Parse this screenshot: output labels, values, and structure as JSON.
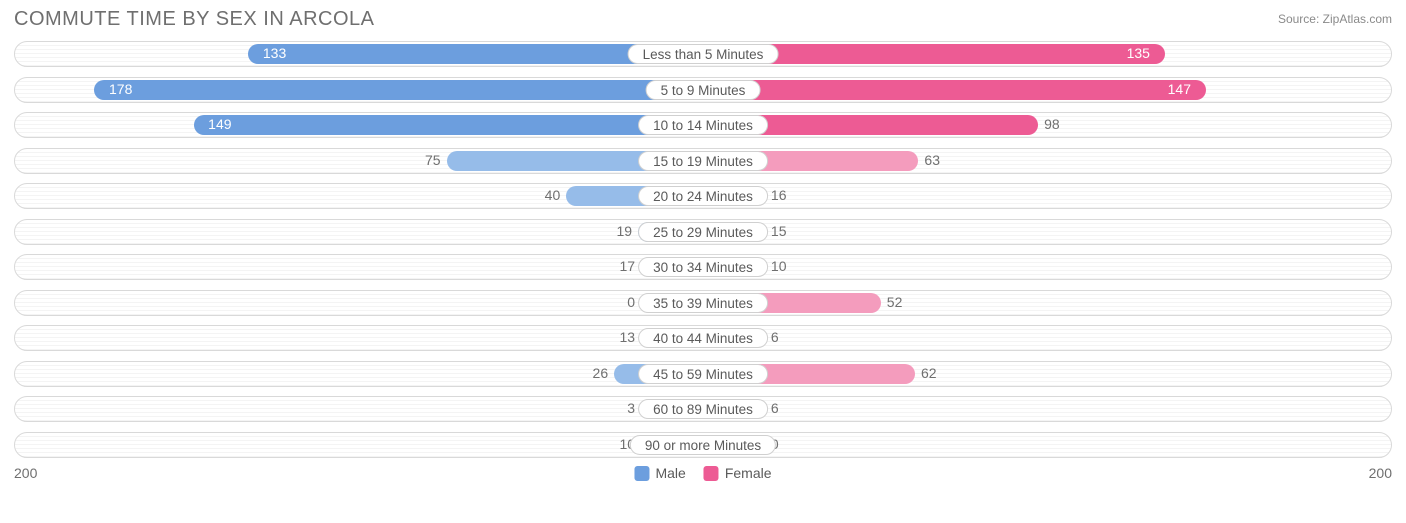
{
  "title": "COMMUTE TIME BY SEX IN ARCOLA",
  "source": "Source: ZipAtlas.com",
  "chart": {
    "type": "diverging-bar",
    "axis_max": 200,
    "axis_left_label": "200",
    "axis_right_label": "200",
    "colors": {
      "male_fill": "#6c9ede",
      "male_fill_light": "#96bce9",
      "female_fill": "#ed5b94",
      "female_fill_light": "#f49cbd",
      "track_border": "#d9d9d9",
      "text": "#6f6f6f",
      "background": "#ffffff"
    },
    "legend": [
      {
        "label": "Male",
        "color": "#6c9ede"
      },
      {
        "label": "Female",
        "color": "#ed5b94"
      }
    ],
    "label_threshold_for_inside": 110,
    "light_threshold": 80,
    "rows": [
      {
        "category": "Less than 5 Minutes",
        "male": 133,
        "female": 135
      },
      {
        "category": "5 to 9 Minutes",
        "male": 178,
        "female": 147
      },
      {
        "category": "10 to 14 Minutes",
        "male": 149,
        "female": 98
      },
      {
        "category": "15 to 19 Minutes",
        "male": 75,
        "female": 63
      },
      {
        "category": "20 to 24 Minutes",
        "male": 40,
        "female": 16
      },
      {
        "category": "25 to 29 Minutes",
        "male": 19,
        "female": 15
      },
      {
        "category": "30 to 34 Minutes",
        "male": 17,
        "female": 10
      },
      {
        "category": "35 to 39 Minutes",
        "male": 0,
        "female": 52
      },
      {
        "category": "40 to 44 Minutes",
        "male": 13,
        "female": 6
      },
      {
        "category": "45 to 59 Minutes",
        "male": 26,
        "female": 62
      },
      {
        "category": "60 to 89 Minutes",
        "male": 3,
        "female": 6
      },
      {
        "category": "90 or more Minutes",
        "male": 10,
        "female": 0
      }
    ]
  }
}
